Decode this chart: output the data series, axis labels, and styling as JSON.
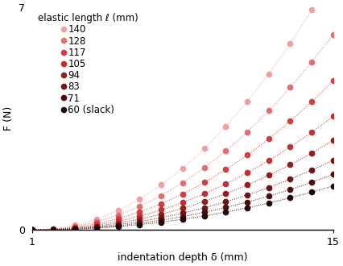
{
  "elastic_lengths": [
    140,
    128,
    117,
    105,
    94,
    83,
    71,
    60
  ],
  "colors": [
    "#f0a0a0",
    "#e07070",
    "#d04040",
    "#c03030",
    "#902020",
    "#701515",
    "#4a0e0e",
    "#200808"
  ],
  "xlim": [
    1,
    15
  ],
  "ylim": [
    0,
    7
  ],
  "xtick_labels": [
    "1",
    "15"
  ],
  "xtick_vals": [
    1,
    15
  ],
  "ytick_labels": [
    "0",
    "7"
  ],
  "ytick_vals": [
    0,
    7
  ],
  "xlabel": "indentation depth δ (mm)",
  "ylabel": "F (N)",
  "legend_title": "elastic length ℓ (mm)",
  "legend_labels": [
    "140",
    "128",
    "117",
    "105",
    "94",
    "83",
    "71",
    "60 (slack)"
  ],
  "curve_scale": [
    0.036,
    0.0275,
    0.021,
    0.016,
    0.0126,
    0.0098,
    0.0078,
    0.0062
  ],
  "curve_exponent": 2.05,
  "dot_x": [
    1,
    2,
    3,
    4,
    5,
    6,
    7,
    8,
    9,
    10,
    11,
    12,
    13,
    14,
    15
  ],
  "background_color": "#ffffff",
  "label_fontsize": 9,
  "legend_fontsize": 8.5,
  "tick_fontsize": 9,
  "linewidth": 0.7,
  "markersize": 4.5
}
